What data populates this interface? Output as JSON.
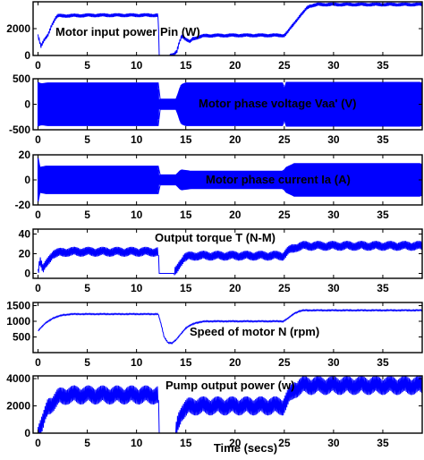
{
  "chart_data": [
    {
      "type": "line",
      "title": "Motor input power   Pin (W)",
      "ylim": [
        0,
        4000
      ],
      "yticks": [
        "0",
        "2000"
      ],
      "ytick_values": [
        0,
        2000
      ],
      "xlim": [
        -0.5,
        39
      ],
      "xticks": [
        "0",
        "5",
        "10",
        "15",
        "20",
        "25",
        "30",
        "35"
      ],
      "xtick_values": [
        0,
        5,
        10,
        15,
        20,
        25,
        30,
        35
      ],
      "color": "#0000ff",
      "series": [
        {
          "x": [
            0,
            0.3,
            0.6,
            1.0,
            1.4,
            1.8,
            2.0,
            6,
            12.2,
            12.3,
            12.6,
            13.0,
            13.4,
            13.8,
            14.1,
            14.3,
            14.6,
            15.0,
            15.4,
            15.7,
            16.2,
            17,
            20,
            24,
            25.0,
            25.4,
            25.8,
            26.2,
            26.6,
            27.0,
            27.3,
            27.6,
            28.5,
            32,
            36,
            39
          ],
          "y": [
            1500,
            700,
            1100,
            1500,
            2300,
            2800,
            2950,
            3000,
            3000,
            0,
            0,
            0,
            0,
            50,
            300,
            900,
            1500,
            1200,
            1000,
            1250,
            1350,
            1480,
            1500,
            1500,
            1500,
            1800,
            2200,
            2600,
            2950,
            3250,
            3550,
            3700,
            3800,
            3800,
            3800,
            3800
          ],
          "ripple": 150
        }
      ]
    },
    {
      "type": "line",
      "title": "Motor phase voltage Vaa' (V)",
      "ylim": [
        -500,
        500
      ],
      "yticks": [
        "500",
        "0",
        "-500"
      ],
      "ytick_values": [
        500,
        0,
        -500
      ],
      "xlim": [
        -0.5,
        39
      ],
      "xticks": [
        "0",
        "5",
        "10",
        "15",
        "20",
        "25",
        "30",
        "35"
      ],
      "xtick_values": [
        0,
        5,
        10,
        15,
        20,
        25,
        30,
        35
      ],
      "color": "#0000ff",
      "series": [
        {
          "envelope_x": [
            0,
            0.3,
            1,
            12.2,
            12.3,
            14.0,
            14.2,
            14.5,
            15.0,
            16,
            20,
            24.9,
            25.0,
            25.2,
            39
          ],
          "envelope_y": [
            430,
            400,
            420,
            420,
            100,
            100,
            200,
            380,
            420,
            420,
            420,
            420,
            300,
            430,
            430
          ]
        }
      ]
    },
    {
      "type": "line",
      "title": "Motor phase current Ia (A)",
      "ylim": [
        -20,
        20
      ],
      "yticks": [
        "20",
        "0",
        "-20"
      ],
      "ytick_values": [
        20,
        0,
        -20
      ],
      "xlim": [
        -0.5,
        39
      ],
      "xticks": [
        "0",
        "5",
        "10",
        "15",
        "20",
        "25",
        "30",
        "35"
      ],
      "xtick_values": [
        0,
        5,
        10,
        15,
        20,
        25,
        30,
        35
      ],
      "color": "#0000ff",
      "series": [
        {
          "envelope_x": [
            0,
            0.2,
            0.8,
            1.5,
            12.2,
            12.3,
            14.0,
            14.5,
            15.5,
            20,
            24.9,
            25.2,
            26,
            39
          ],
          "envelope_y": [
            18,
            10,
            11,
            11,
            11,
            4,
            4,
            8,
            7,
            7,
            7,
            10,
            13,
            13
          ]
        }
      ]
    },
    {
      "type": "line",
      "title": "Output torque T (N-M)",
      "ylim": [
        -5,
        45
      ],
      "yticks": [
        "40",
        "20",
        "0"
      ],
      "ytick_values": [
        40,
        20,
        0
      ],
      "xlim": [
        -0.5,
        39
      ],
      "xticks": [
        "0",
        "5",
        "10",
        "15",
        "20",
        "25",
        "30",
        "35"
      ],
      "xtick_values": [
        0,
        5,
        10,
        15,
        20,
        25,
        30,
        35
      ],
      "color": "#0000ff",
      "series": [
        {
          "x": [
            0,
            0.2,
            0.5,
            1.0,
            1.5,
            3,
            12.2,
            12.3,
            13.0,
            13.8,
            14.1,
            14.4,
            14.8,
            15.2,
            16,
            20,
            24.9,
            25.3,
            25.8,
            26.3,
            27,
            30,
            39
          ],
          "y": [
            2,
            14,
            4,
            12,
            20,
            22,
            22,
            0,
            0,
            0,
            4,
            10,
            16,
            17,
            18,
            18,
            18,
            22,
            25,
            27,
            28,
            28,
            28
          ],
          "ripple": 5
        }
      ]
    },
    {
      "type": "line",
      "title": "Speed of motor N (rpm)",
      "ylim": [
        0,
        1600
      ],
      "yticks": [
        "1500",
        "1000",
        "500"
      ],
      "ytick_values": [
        1500,
        1000,
        500
      ],
      "xlim": [
        -0.5,
        39
      ],
      "xticks": [
        "0",
        "5",
        "10",
        "15",
        "20",
        "25",
        "30",
        "35"
      ],
      "xtick_values": [
        0,
        5,
        10,
        15,
        20,
        25,
        30,
        35
      ],
      "color": "#0000ff",
      "series": [
        {
          "x": [
            0,
            0.3,
            0.8,
            1.5,
            2.5,
            3.5,
            12.2,
            12.5,
            12.8,
            13.2,
            13.6,
            14.0,
            14.5,
            15.0,
            15.5,
            16.0,
            17,
            20,
            24.9,
            25.4,
            26.0,
            26.5,
            27,
            30,
            39
          ],
          "y": [
            700,
            800,
            950,
            1100,
            1200,
            1230,
            1230,
            900,
            500,
            320,
            300,
            400,
            600,
            780,
            880,
            950,
            1000,
            1000,
            1000,
            1100,
            1250,
            1320,
            1350,
            1350,
            1350
          ],
          "ripple": 20
        }
      ]
    },
    {
      "type": "line",
      "title": "Pump output power (w)",
      "ylim": [
        0,
        4200
      ],
      "yticks": [
        "4000",
        "2000",
        "0"
      ],
      "ytick_values": [
        4000,
        2000,
        0
      ],
      "xlim": [
        -0.5,
        39
      ],
      "xticks": [
        "0",
        "5",
        "10",
        "15",
        "20",
        "25",
        "30",
        "35"
      ],
      "xtick_values": [
        0,
        5,
        10,
        15,
        20,
        25,
        30,
        35
      ],
      "xlabel": "Time (secs)",
      "color": "#0000ff",
      "series": [
        {
          "x": [
            0,
            0.5,
            1.0,
            2.0,
            3,
            12.2,
            12.3,
            13.0,
            14.0,
            14.2,
            14.6,
            15.2,
            16,
            20,
            24.9,
            25.4,
            26.0,
            26.5,
            27,
            30,
            39
          ],
          "y": [
            100,
            800,
            1900,
            2600,
            2800,
            2800,
            0,
            0,
            0,
            800,
            1600,
            1900,
            2000,
            2000,
            2000,
            2600,
            3200,
            3400,
            3500,
            3500,
            3500
          ],
          "ripple": 700
        }
      ]
    }
  ]
}
